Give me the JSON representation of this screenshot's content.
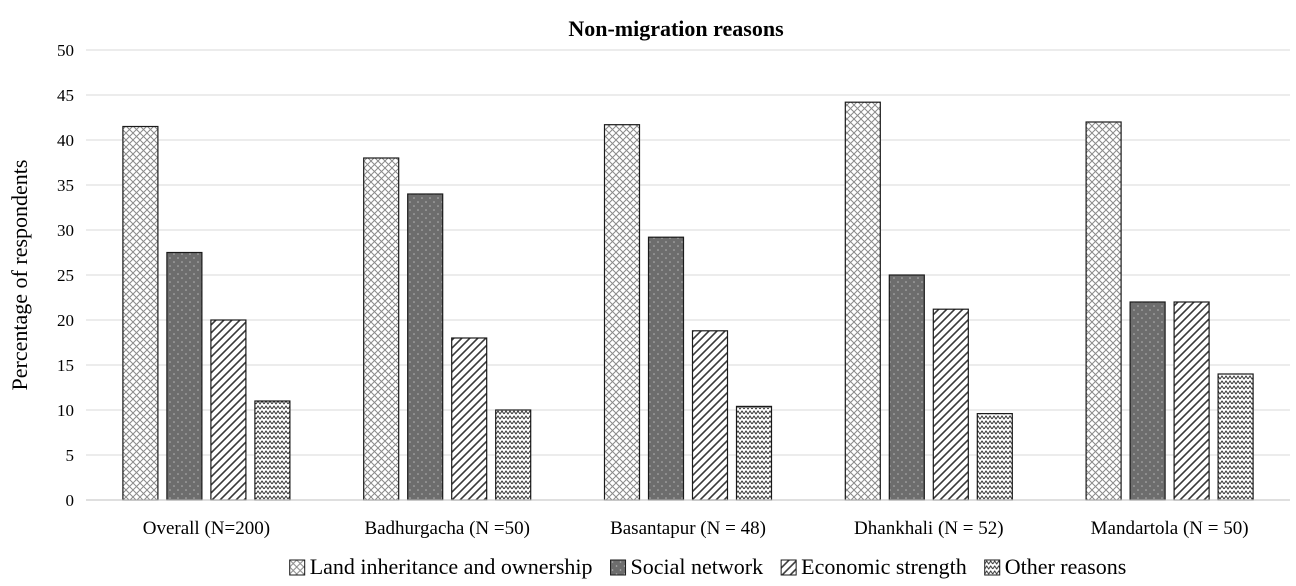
{
  "chart_data": {
    "type": "bar",
    "title": "Non-migration reasons",
    "xlabel": "",
    "ylabel": "Percentage of respondents",
    "ylim": [
      0,
      50
    ],
    "yticks": [
      0,
      5,
      10,
      15,
      20,
      25,
      30,
      35,
      40,
      45,
      50
    ],
    "grid": true,
    "legend_position": "bottom",
    "categories": [
      "Overall (N=200)",
      "Badhurgacha (N =50)",
      "Basantapur (N = 48)",
      "Dhankhali (N = 52)",
      "Mandartola (N = 50)"
    ],
    "series": [
      {
        "name": "Land inheritance and ownership",
        "values": [
          41.5,
          38,
          41.7,
          44.2,
          42
        ],
        "pattern": "crosshatch",
        "color": "#ffffff"
      },
      {
        "name": "Social network",
        "values": [
          27.5,
          34,
          29.2,
          25,
          22
        ],
        "pattern": "dots",
        "color": "#6d6d6d"
      },
      {
        "name": "Economic strength",
        "values": [
          20,
          18,
          18.8,
          21.2,
          22
        ],
        "pattern": "diagonal",
        "color": "#ffffff"
      },
      {
        "name": "Other reasons",
        "values": [
          11,
          10,
          10.4,
          9.6,
          14
        ],
        "pattern": "zigzag",
        "color": "#ffffff"
      }
    ],
    "colors": {
      "grid": "#d9d9d9",
      "axis": "#bfbfbf",
      "bar_stroke": "#1a1a1a"
    }
  }
}
